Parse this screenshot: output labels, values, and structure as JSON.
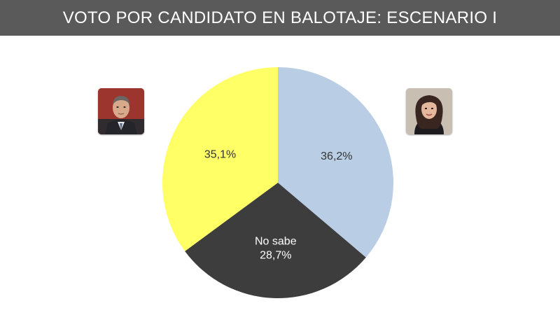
{
  "header": {
    "title": "VOTO POR CANDIDATO EN BALOTAJE: ESCENARIO I"
  },
  "colors": {
    "title_bar": "#5a5a5a",
    "slice_blue": "#b9cde5",
    "slice_dark": "#3d3d3d",
    "slice_yellow": "#ffff66"
  },
  "chart_data": {
    "type": "pie",
    "title": "VOTO POR CANDIDATO EN BALOTAJE: ESCENARIO I",
    "slices": [
      {
        "label": "",
        "value": 36.2,
        "display": "36,2%",
        "color": "#b9cde5",
        "text_color": "#333333"
      },
      {
        "label": "No sabe",
        "value": 28.7,
        "display": "28,7%",
        "color": "#3d3d3d",
        "text_color": "#ffffff"
      },
      {
        "label": "",
        "value": 35.1,
        "display": "35,1%",
        "color": "#ffff66",
        "text_color": "#333333"
      }
    ],
    "start_angle_deg": 0,
    "direction": "clockwise"
  },
  "photos": {
    "left_icon": "man-in-suit-portrait",
    "right_icon": "woman-portrait"
  }
}
